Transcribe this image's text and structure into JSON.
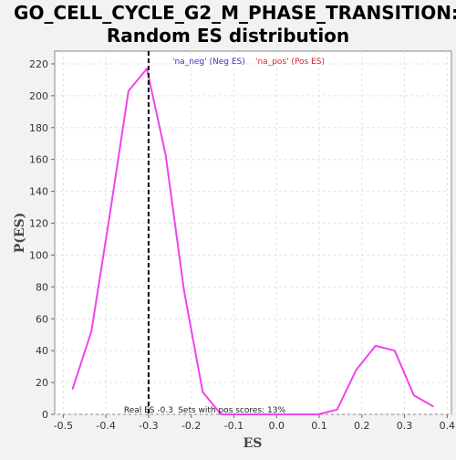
{
  "chart_data": {
    "type": "line",
    "title_lines": [
      "GO_CELL_CYCLE_G2_M_PHASE_TRANSITION:",
      "Random ES distribution"
    ],
    "xlabel": "ES",
    "ylabel": "P(ES)",
    "xlim": [
      -0.52,
      0.41
    ],
    "ylim": [
      0,
      228
    ],
    "x_ticks": [
      -0.5,
      -0.4,
      -0.3,
      -0.2,
      -0.1,
      0.0,
      0.1,
      0.2,
      0.3,
      0.4
    ],
    "x_tick_labels": [
      "-0.5",
      "-0.4",
      "-0.3",
      "-0.2",
      "-0.1",
      "0.0",
      "0.1",
      "0.2",
      "0.3",
      "0.4"
    ],
    "y_ticks": [
      0,
      20,
      40,
      60,
      80,
      100,
      120,
      140,
      160,
      180,
      200,
      220
    ],
    "y_tick_labels": [
      "0",
      "20",
      "40",
      "60",
      "80",
      "100",
      "120",
      "140",
      "160",
      "180",
      "200",
      "220"
    ],
    "grid": true,
    "legend": {
      "placement": "top",
      "neg_label": "'na_neg' (Neg ES)",
      "pos_label": "'na_pos' (Pos ES)"
    },
    "series": [
      {
        "color": "#ee44ee",
        "x": [
          -0.478,
          -0.434,
          -0.391,
          -0.347,
          -0.304,
          -0.26,
          -0.217,
          -0.173,
          -0.13,
          -0.086,
          -0.043,
          0.0,
          0.051,
          0.097,
          0.142,
          0.187,
          0.232,
          0.277,
          0.322,
          0.367
        ],
        "y": [
          16,
          52,
          125,
          203,
          217,
          163,
          78,
          14,
          0,
          0,
          0,
          0,
          0,
          0,
          3,
          28,
          43,
          40,
          12,
          5
        ]
      }
    ],
    "reference_line": {
      "x": -0.3,
      "label": "Real ES -0.3",
      "style": "dashed",
      "color": "#000000"
    },
    "annotation": {
      "text": "Sets with pos scores: 13%",
      "x": -0.105
    }
  }
}
